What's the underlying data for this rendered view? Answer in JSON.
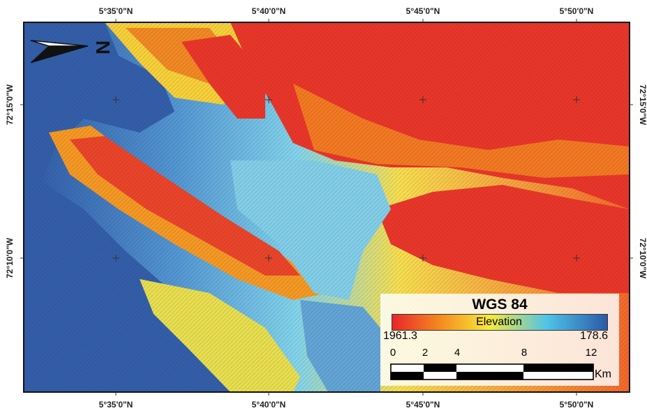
{
  "map": {
    "datum_title": "WGS 84",
    "legend_label": "Elevation",
    "elevation_high": "1961.3",
    "elevation_low": "178.6",
    "scale_ticks": [
      "0",
      "2",
      "4",
      "8",
      "12"
    ],
    "scale_unit": "Km",
    "north_label": "N",
    "lat_labels_top": [
      "5°35'0\"N",
      "5°40'0\"N",
      "5°45'0\"N",
      "5°50'0\"N"
    ],
    "lat_labels_bottom": [
      "5°35'0\"N",
      "5°40'0\"N",
      "5°45'0\"N",
      "5°50'0\"N"
    ],
    "lon_labels_left": [
      "72°15'0\"W",
      "72°10'0\"W"
    ],
    "lon_labels_right": [
      "72°15'0\"W",
      "72°10'0\"W"
    ],
    "colors": {
      "high": "#e8262a",
      "mid_high": "#f5891f",
      "mid": "#f7ea3a",
      "mid_low": "#4fc3e8",
      "low": "#2b5aa8",
      "frame": "#111111"
    }
  }
}
